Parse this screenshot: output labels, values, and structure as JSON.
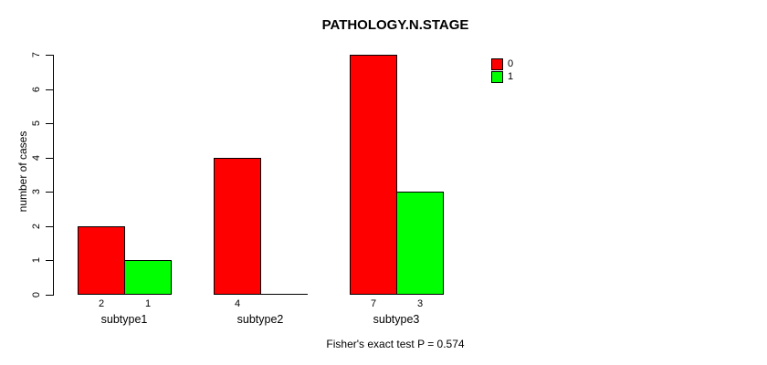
{
  "title": "PATHOLOGY.N.STAGE",
  "footer": "Fisher's exact test P = 0.574",
  "chart_data": {
    "type": "bar",
    "title": "PATHOLOGY.N.STAGE",
    "xlabel": "",
    "ylabel": "number of cases",
    "categories": [
      "subtype1",
      "subtype2",
      "subtype3"
    ],
    "series": [
      {
        "name": "0",
        "color": "#ff0000",
        "values": [
          2,
          4,
          7
        ]
      },
      {
        "name": "1",
        "color": "#00ff00",
        "values": [
          1,
          0,
          3
        ]
      }
    ],
    "labels_under_bars": [
      [
        "2",
        "1"
      ],
      [
        "4",
        ""
      ],
      [
        "7",
        "3"
      ]
    ],
    "ylim": [
      0,
      7
    ],
    "yticks": [
      0,
      1,
      2,
      3,
      4,
      5,
      6,
      7
    ],
    "grid": false,
    "legend_position": "right",
    "legend_entries": [
      "0",
      "1"
    ],
    "bar_border_color": "#000000",
    "annotation": "Fisher's exact test P = 0.574"
  }
}
